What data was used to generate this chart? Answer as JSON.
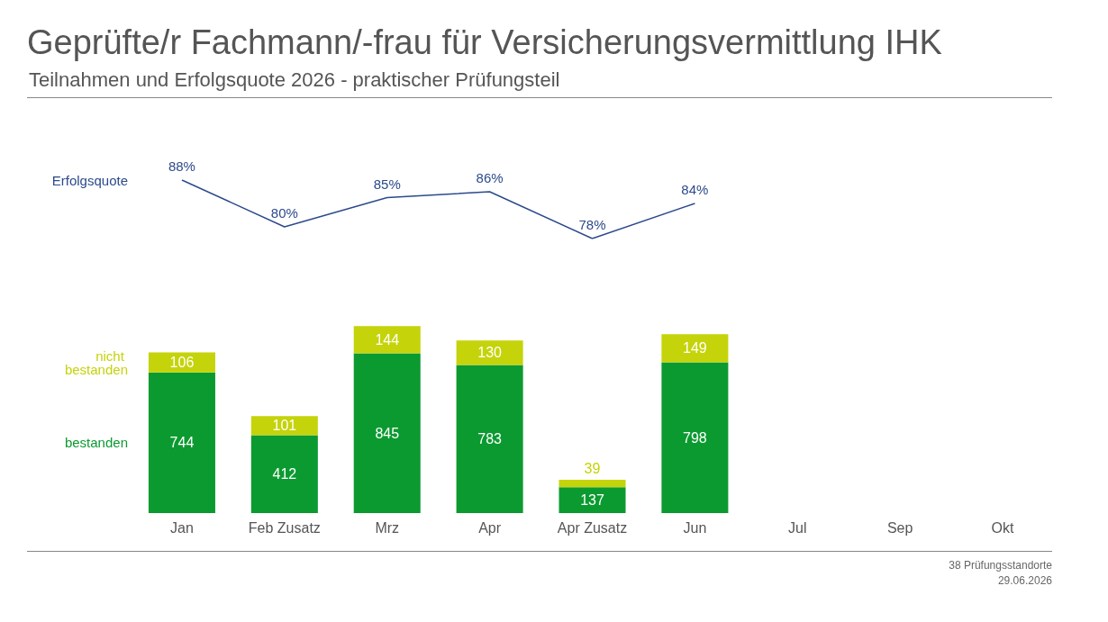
{
  "chart_data": [
    {
      "type": "line",
      "title": "Geprüfte/r Fachmann/-frau für Versicherungsvermittlung IHK",
      "subtitle": "Teilnahmen und Erfolgsquote 2026 - praktischer Prüfungsteil",
      "categories": [
        "Jan",
        "Feb Zusatz",
        "Mrz",
        "Apr",
        "Apr Zusatz",
        "Jun",
        "Jul",
        "Sep",
        "Okt"
      ],
      "tick_labels": false,
      "legend": false,
      "grid": false,
      "marker": "none",
      "series": [
        {
          "name": "Erfolgsquote",
          "color": "#2c4a8c",
          "values": [
            88,
            80,
            85,
            86,
            78,
            84,
            null,
            null,
            null
          ],
          "value_labels": [
            "88%",
            "80%",
            "85%",
            "86%",
            "78%",
            "84%",
            null,
            null,
            null
          ]
        }
      ]
    },
    {
      "type": "bar",
      "categories": [
        "Jan",
        "Feb Zusatz",
        "Mrz",
        "Apr",
        "Apr Zusatz",
        "Jun",
        "Jul",
        "Sep",
        "Okt"
      ],
      "stacked": true,
      "data_labels": true,
      "legend": false,
      "grid": false,
      "series": [
        {
          "name": "bestanden",
          "color": "#0b9a30",
          "values": [
            744,
            412,
            845,
            783,
            137,
            798,
            null,
            null,
            null
          ]
        },
        {
          "name": "nicht bestanden",
          "color": "#c5d30a",
          "values": [
            106,
            101,
            144,
            130,
            39,
            149,
            null,
            null,
            null
          ]
        }
      ],
      "annotations": [
        "38 Prüfungsstandorte",
        "29.06.2026"
      ]
    }
  ]
}
